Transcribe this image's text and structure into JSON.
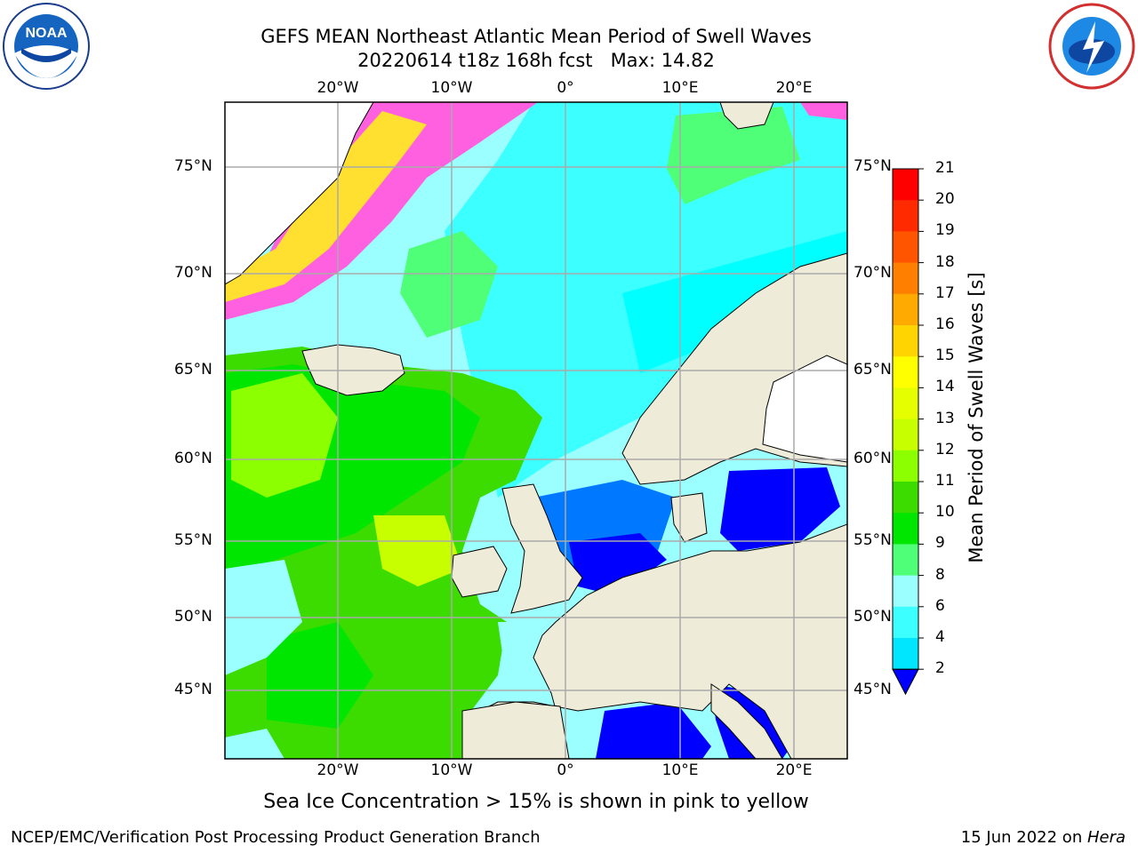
{
  "title_line1": "GEFS MEAN Northeast Atlantic Mean Period of Swell Waves",
  "title_line2": "20220614 t18z 168h fcst",
  "title_max": "Max: 14.82",
  "lon_labels": [
    "20°W",
    "10°W",
    "0°",
    "10°E",
    "20°E"
  ],
  "lat_labels": [
    "75°N",
    "70°N",
    "65°N",
    "60°N",
    "55°N",
    "50°N",
    "45°N"
  ],
  "colorbar": {
    "label": "Mean Period of Swell Waves [s]",
    "ticks": [
      "21",
      "20",
      "19",
      "18",
      "17",
      "16",
      "15",
      "14",
      "13",
      "12",
      "11",
      "10",
      "9",
      "8",
      "6",
      "4",
      "2"
    ],
    "colors": [
      "#ff0000",
      "#ff2a00",
      "#ff5500",
      "#ff8000",
      "#ffaa00",
      "#ffd400",
      "#ffff00",
      "#e6ff00",
      "#c8ff00",
      "#8cff00",
      "#3cdc00",
      "#00e600",
      "#50ff78",
      "#9cffff",
      "#3cffff",
      "#00e6ff",
      "#0078ff",
      "#0000ff"
    ]
  },
  "caption": "Sea Ice Concentration > 15% is shown in pink to yellow",
  "footer_left": "NCEP/EMC/Verification Post Processing Product Generation Branch",
  "footer_right_date": "15 Jun 2022 on ",
  "footer_right_machine": "Hera",
  "logos": {
    "left": "noaa-logo",
    "right": "nws-logo",
    "left_text": "NOAA"
  },
  "map_colors": {
    "land": "#eeecd9",
    "ocean_green": "#3cf03c",
    "ocean_cyan": "#9cffff",
    "ice_pink": "#ff60e0",
    "ice_yellow": "#ffe030"
  }
}
